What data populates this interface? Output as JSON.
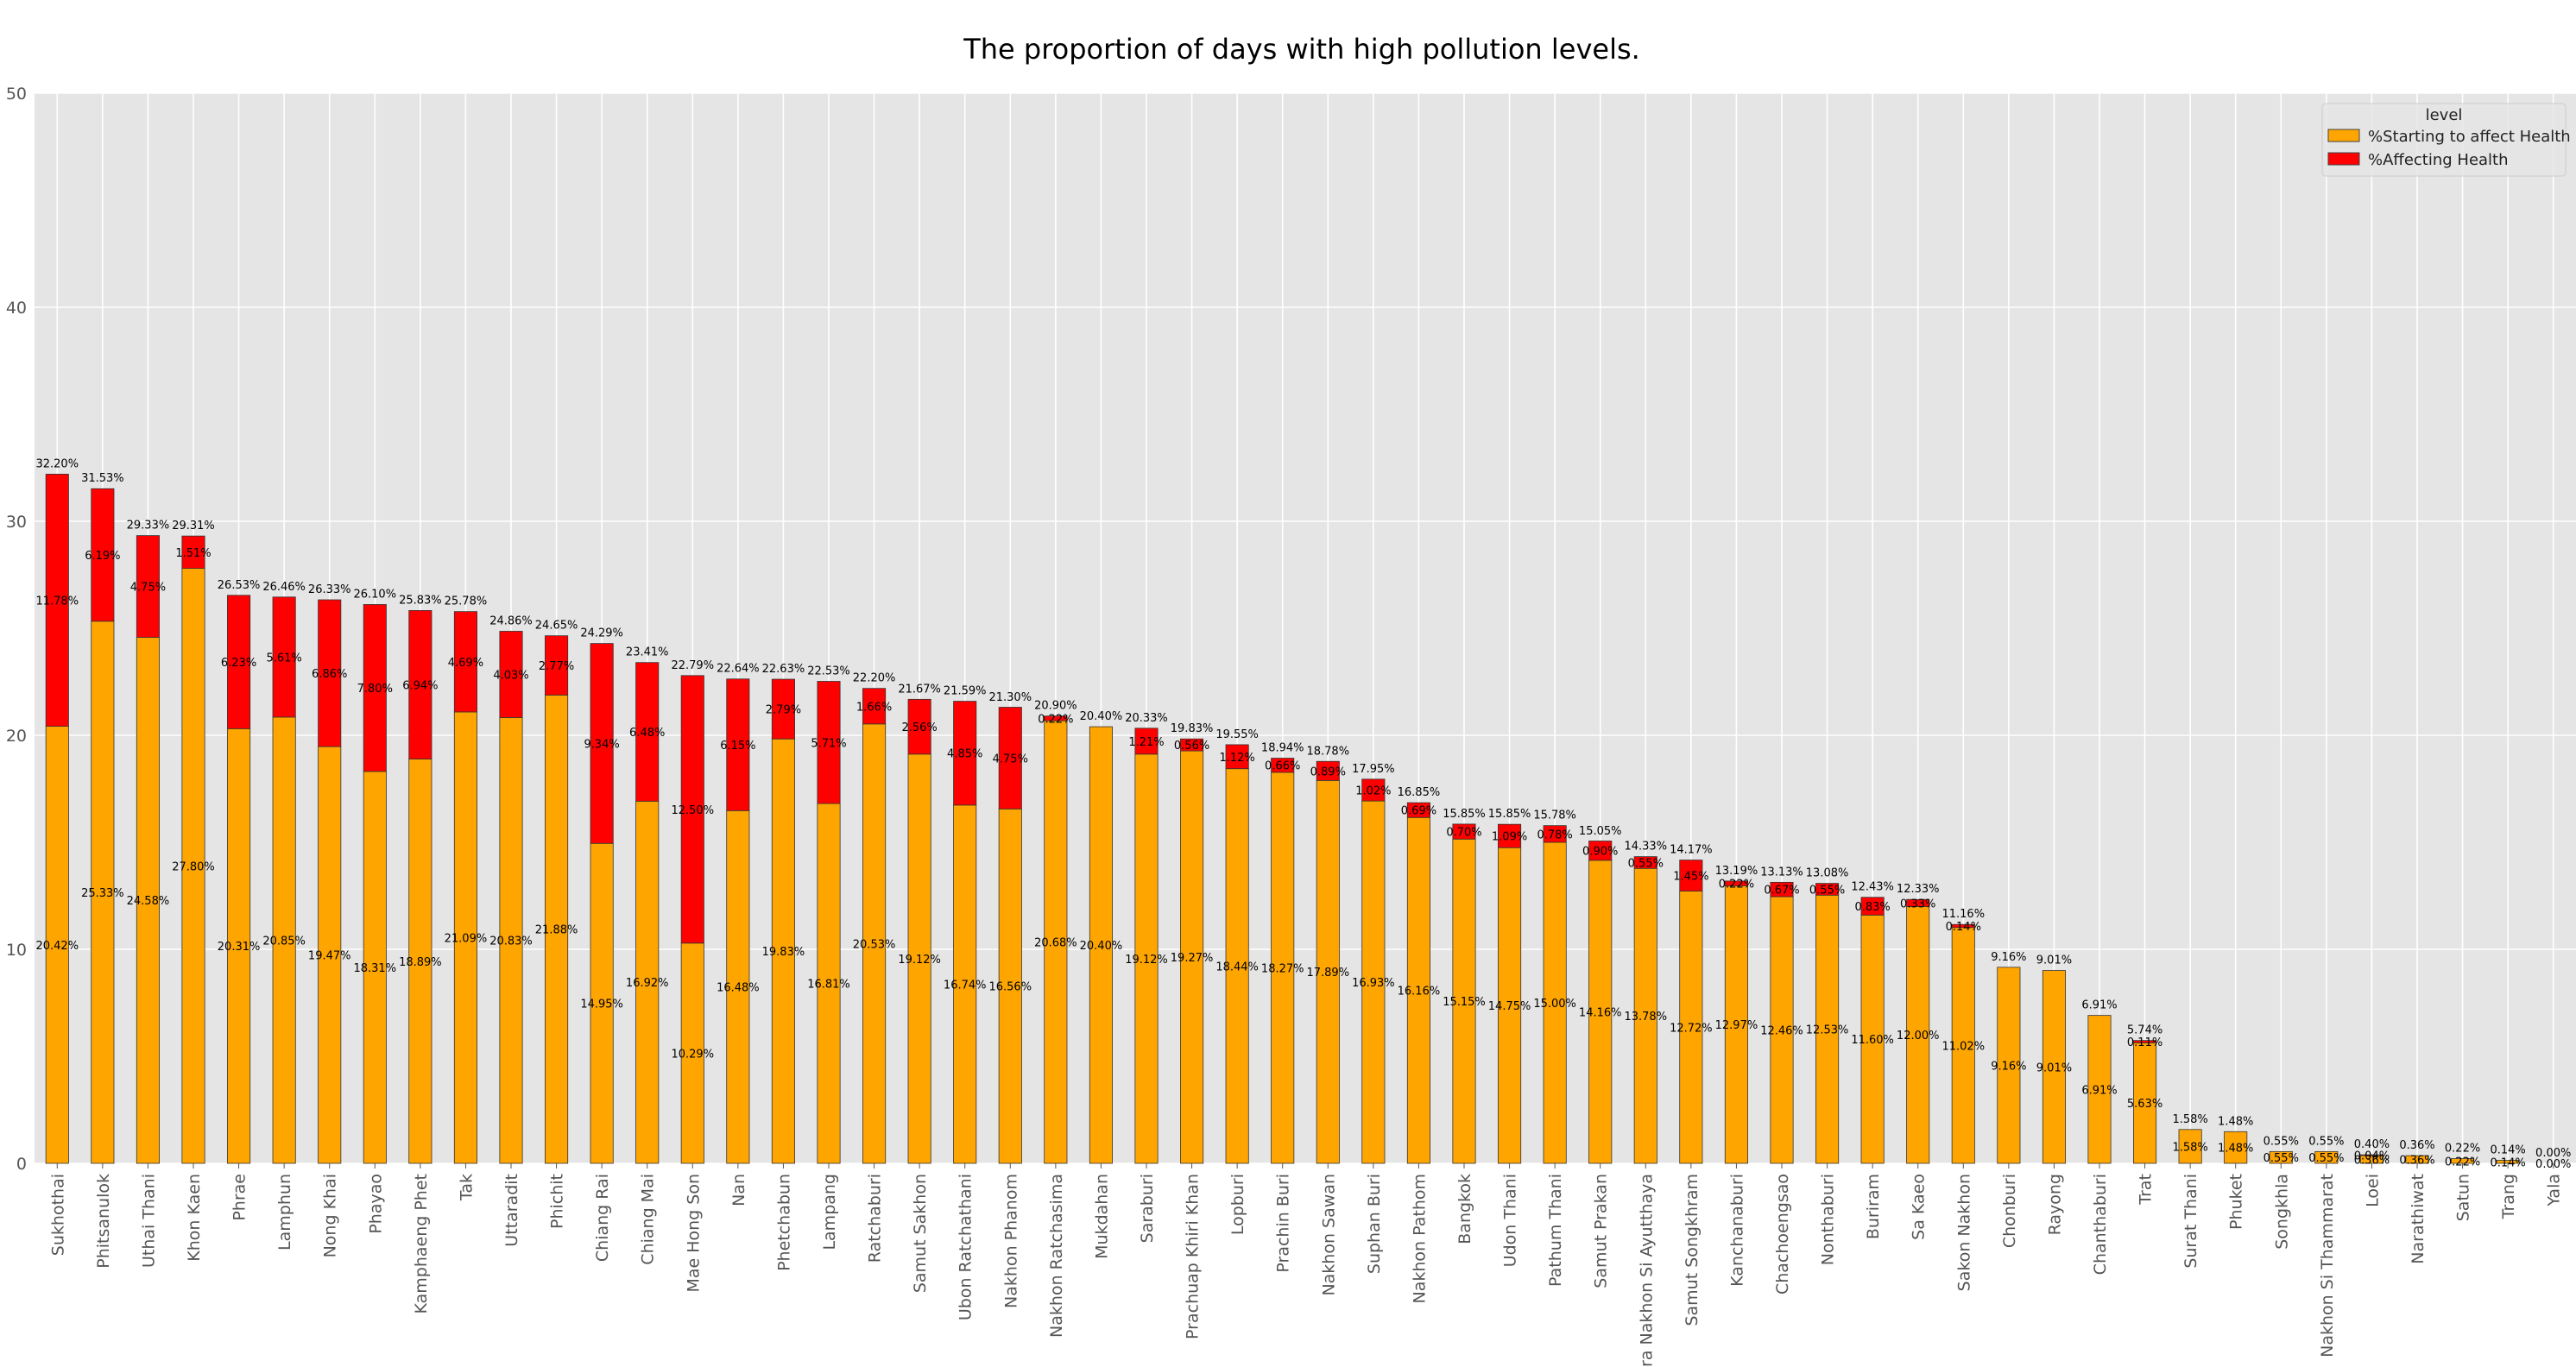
{
  "chart_data": {
    "type": "bar",
    "stacked": true,
    "title": "The proportion of days with high pollution levels.",
    "xlabel": "",
    "ylabel": "",
    "ylim": [
      0,
      50
    ],
    "yticks": [
      "0",
      "10",
      "20",
      "30",
      "40",
      "50"
    ],
    "grid": true,
    "legend": {
      "title": "level",
      "placement": "top-right"
    },
    "categories": [
      "Sukhothai",
      "Phitsanulok",
      "Uthai Thani",
      "Khon Kaen",
      "Phrae",
      "Lamphun",
      "Nong Khai",
      "Phayao",
      "Kamphaeng Phet",
      "Tak",
      "Uttaradit",
      "Phichit",
      "Chiang Rai",
      "Chiang Mai",
      "Mae Hong Son",
      "Nan",
      "Phetchabun",
      "Lampang",
      "Ratchaburi",
      "Samut Sakhon",
      "Ubon Ratchathani",
      "Nakhon Phanom",
      "Nakhon Ratchasima",
      "Mukdahan",
      "Saraburi",
      "Prachuap Khiri Khan",
      "Lopburi",
      "Prachin Buri",
      "Nakhon Sawan",
      "Suphan Buri",
      "Nakhon Pathom",
      "Bangkok",
      "Udon Thani",
      "Pathum Thani",
      "Samut Prakan",
      "Phra Nakhon Si Ayutthaya",
      "Samut Songkhram",
      "Kanchanaburi",
      "Chachoengsao",
      "Nonthaburi",
      "Buriram",
      "Sa Kaeo",
      "Sakon Nakhon",
      "Chonburi",
      "Rayong",
      "Chanthaburi",
      "Trat",
      "Surat Thani",
      "Phuket",
      "Songkhla",
      "Nakhon Si Thammarat",
      "Loei",
      "Narathiwat",
      "Satun",
      "Trang",
      "Yala"
    ],
    "series": [
      {
        "name": "%Starting to affect Health",
        "color": "#FFA500",
        "values": [
          20.42,
          25.33,
          24.58,
          27.8,
          20.31,
          20.85,
          19.47,
          18.31,
          18.89,
          21.09,
          20.83,
          21.88,
          14.95,
          16.92,
          10.29,
          16.48,
          19.83,
          16.81,
          20.53,
          19.12,
          16.74,
          16.56,
          20.68,
          20.4,
          19.12,
          19.27,
          18.44,
          18.27,
          17.89,
          16.93,
          16.16,
          15.15,
          14.75,
          15.0,
          14.16,
          13.78,
          12.72,
          12.97,
          12.46,
          12.53,
          11.6,
          12.0,
          11.02,
          9.16,
          9.01,
          6.91,
          5.63,
          1.58,
          1.48,
          0.55,
          0.55,
          0.36,
          0.36,
          0.22,
          0.14,
          0.0
        ],
        "labels": [
          "20.42%",
          "25.33%",
          "24.58%",
          "27.80%",
          "20.31%",
          "20.85%",
          "19.47%",
          "18.31%",
          "18.89%",
          "21.09%",
          "20.83%",
          "21.88%",
          "14.95%",
          "16.92%",
          "10.29%",
          "16.48%",
          "19.83%",
          "16.81%",
          "20.53%",
          "19.12%",
          "16.74%",
          "16.56%",
          "20.68%",
          "20.40%",
          "19.12%",
          "19.27%",
          "18.44%",
          "18.27%",
          "17.89%",
          "16.93%",
          "16.16%",
          "15.15%",
          "14.75%",
          "15.00%",
          "14.16%",
          "13.78%",
          "12.72%",
          "12.97%",
          "12.46%",
          "12.53%",
          "11.60%",
          "12.00%",
          "11.02%",
          "9.16%",
          "9.01%",
          "6.91%",
          "5.63%",
          "1.58%",
          "1.48%",
          "0.55%",
          "0.55%",
          "0.36%",
          "0.36%",
          "0.22%",
          "0.14%",
          "0.00%"
        ]
      },
      {
        "name": "%Affecting Health",
        "color": "#FF0000",
        "values": [
          11.78,
          6.19,
          4.75,
          1.51,
          6.23,
          5.61,
          6.86,
          7.8,
          6.94,
          4.69,
          4.03,
          2.77,
          9.34,
          6.48,
          12.5,
          6.15,
          2.79,
          5.71,
          1.66,
          2.56,
          4.85,
          4.75,
          0.22,
          0.0,
          1.21,
          0.56,
          1.12,
          0.66,
          0.89,
          1.02,
          0.69,
          0.7,
          1.09,
          0.78,
          0.9,
          0.55,
          1.45,
          0.22,
          0.67,
          0.55,
          0.83,
          0.33,
          0.14,
          0.0,
          0.0,
          0.0,
          0.11,
          0.0,
          0.0,
          0.0,
          0.0,
          0.04,
          0.0,
          0.0,
          0.0,
          0.0
        ],
        "labels": [
          "11.78%",
          "6.19%",
          "4.75%",
          "1.51%",
          "6.23%",
          "5.61%",
          "6.86%",
          "7.80%",
          "6.94%",
          "4.69%",
          "4.03%",
          "2.77%",
          "9.34%",
          "6.48%",
          "12.50%",
          "6.15%",
          "2.79%",
          "5.71%",
          "1.66%",
          "2.56%",
          "4.85%",
          "4.75%",
          "0.22%",
          "",
          "1.21%",
          "0.56%",
          "1.12%",
          "0.66%",
          "0.89%",
          "1.02%",
          "0.69%",
          "0.70%",
          "1.09%",
          "0.78%",
          "0.90%",
          "0.55%",
          "1.45%",
          "0.22%",
          "0.67%",
          "0.55%",
          "0.83%",
          "0.33%",
          "0.14%",
          "",
          "",
          "",
          "0.11%",
          "",
          "",
          "",
          "",
          "0.04%",
          "",
          "",
          "",
          ""
        ]
      }
    ],
    "totals": [
      "32.20%",
      "31.53%",
      "29.33%",
      "29.31%",
      "26.53%",
      "26.46%",
      "26.33%",
      "26.10%",
      "25.83%",
      "25.78%",
      "24.86%",
      "24.65%",
      "24.29%",
      "23.41%",
      "22.79%",
      "22.64%",
      "22.63%",
      "22.53%",
      "22.20%",
      "21.67%",
      "21.59%",
      "21.30%",
      "20.90%",
      "20.40%",
      "20.33%",
      "19.83%",
      "19.55%",
      "18.94%",
      "18.78%",
      "17.95%",
      "16.85%",
      "15.85%",
      "15.85%",
      "15.78%",
      "15.05%",
      "14.33%",
      "14.17%",
      "13.19%",
      "13.13%",
      "13.08%",
      "12.43%",
      "12.33%",
      "11.16%",
      "9.16%",
      "9.01%",
      "6.91%",
      "5.74%",
      "1.58%",
      "1.48%",
      "0.55%",
      "0.55%",
      "0.40%",
      "0.36%",
      "0.22%",
      "0.14%",
      "0.00%"
    ],
    "totals_values": [
      32.2,
      31.53,
      29.33,
      29.31,
      26.53,
      26.46,
      26.33,
      26.1,
      25.83,
      25.78,
      24.86,
      24.65,
      24.29,
      23.41,
      22.79,
      22.64,
      22.63,
      22.53,
      22.2,
      21.67,
      21.59,
      21.3,
      20.9,
      20.4,
      20.33,
      19.83,
      19.55,
      18.94,
      18.78,
      17.95,
      16.85,
      15.85,
      15.85,
      15.78,
      15.05,
      14.33,
      14.17,
      13.19,
      13.13,
      13.08,
      12.43,
      12.33,
      11.16,
      9.16,
      9.01,
      6.91,
      5.74,
      1.58,
      1.48,
      0.55,
      0.55,
      0.4,
      0.36,
      0.22,
      0.14,
      0.0
    ]
  }
}
